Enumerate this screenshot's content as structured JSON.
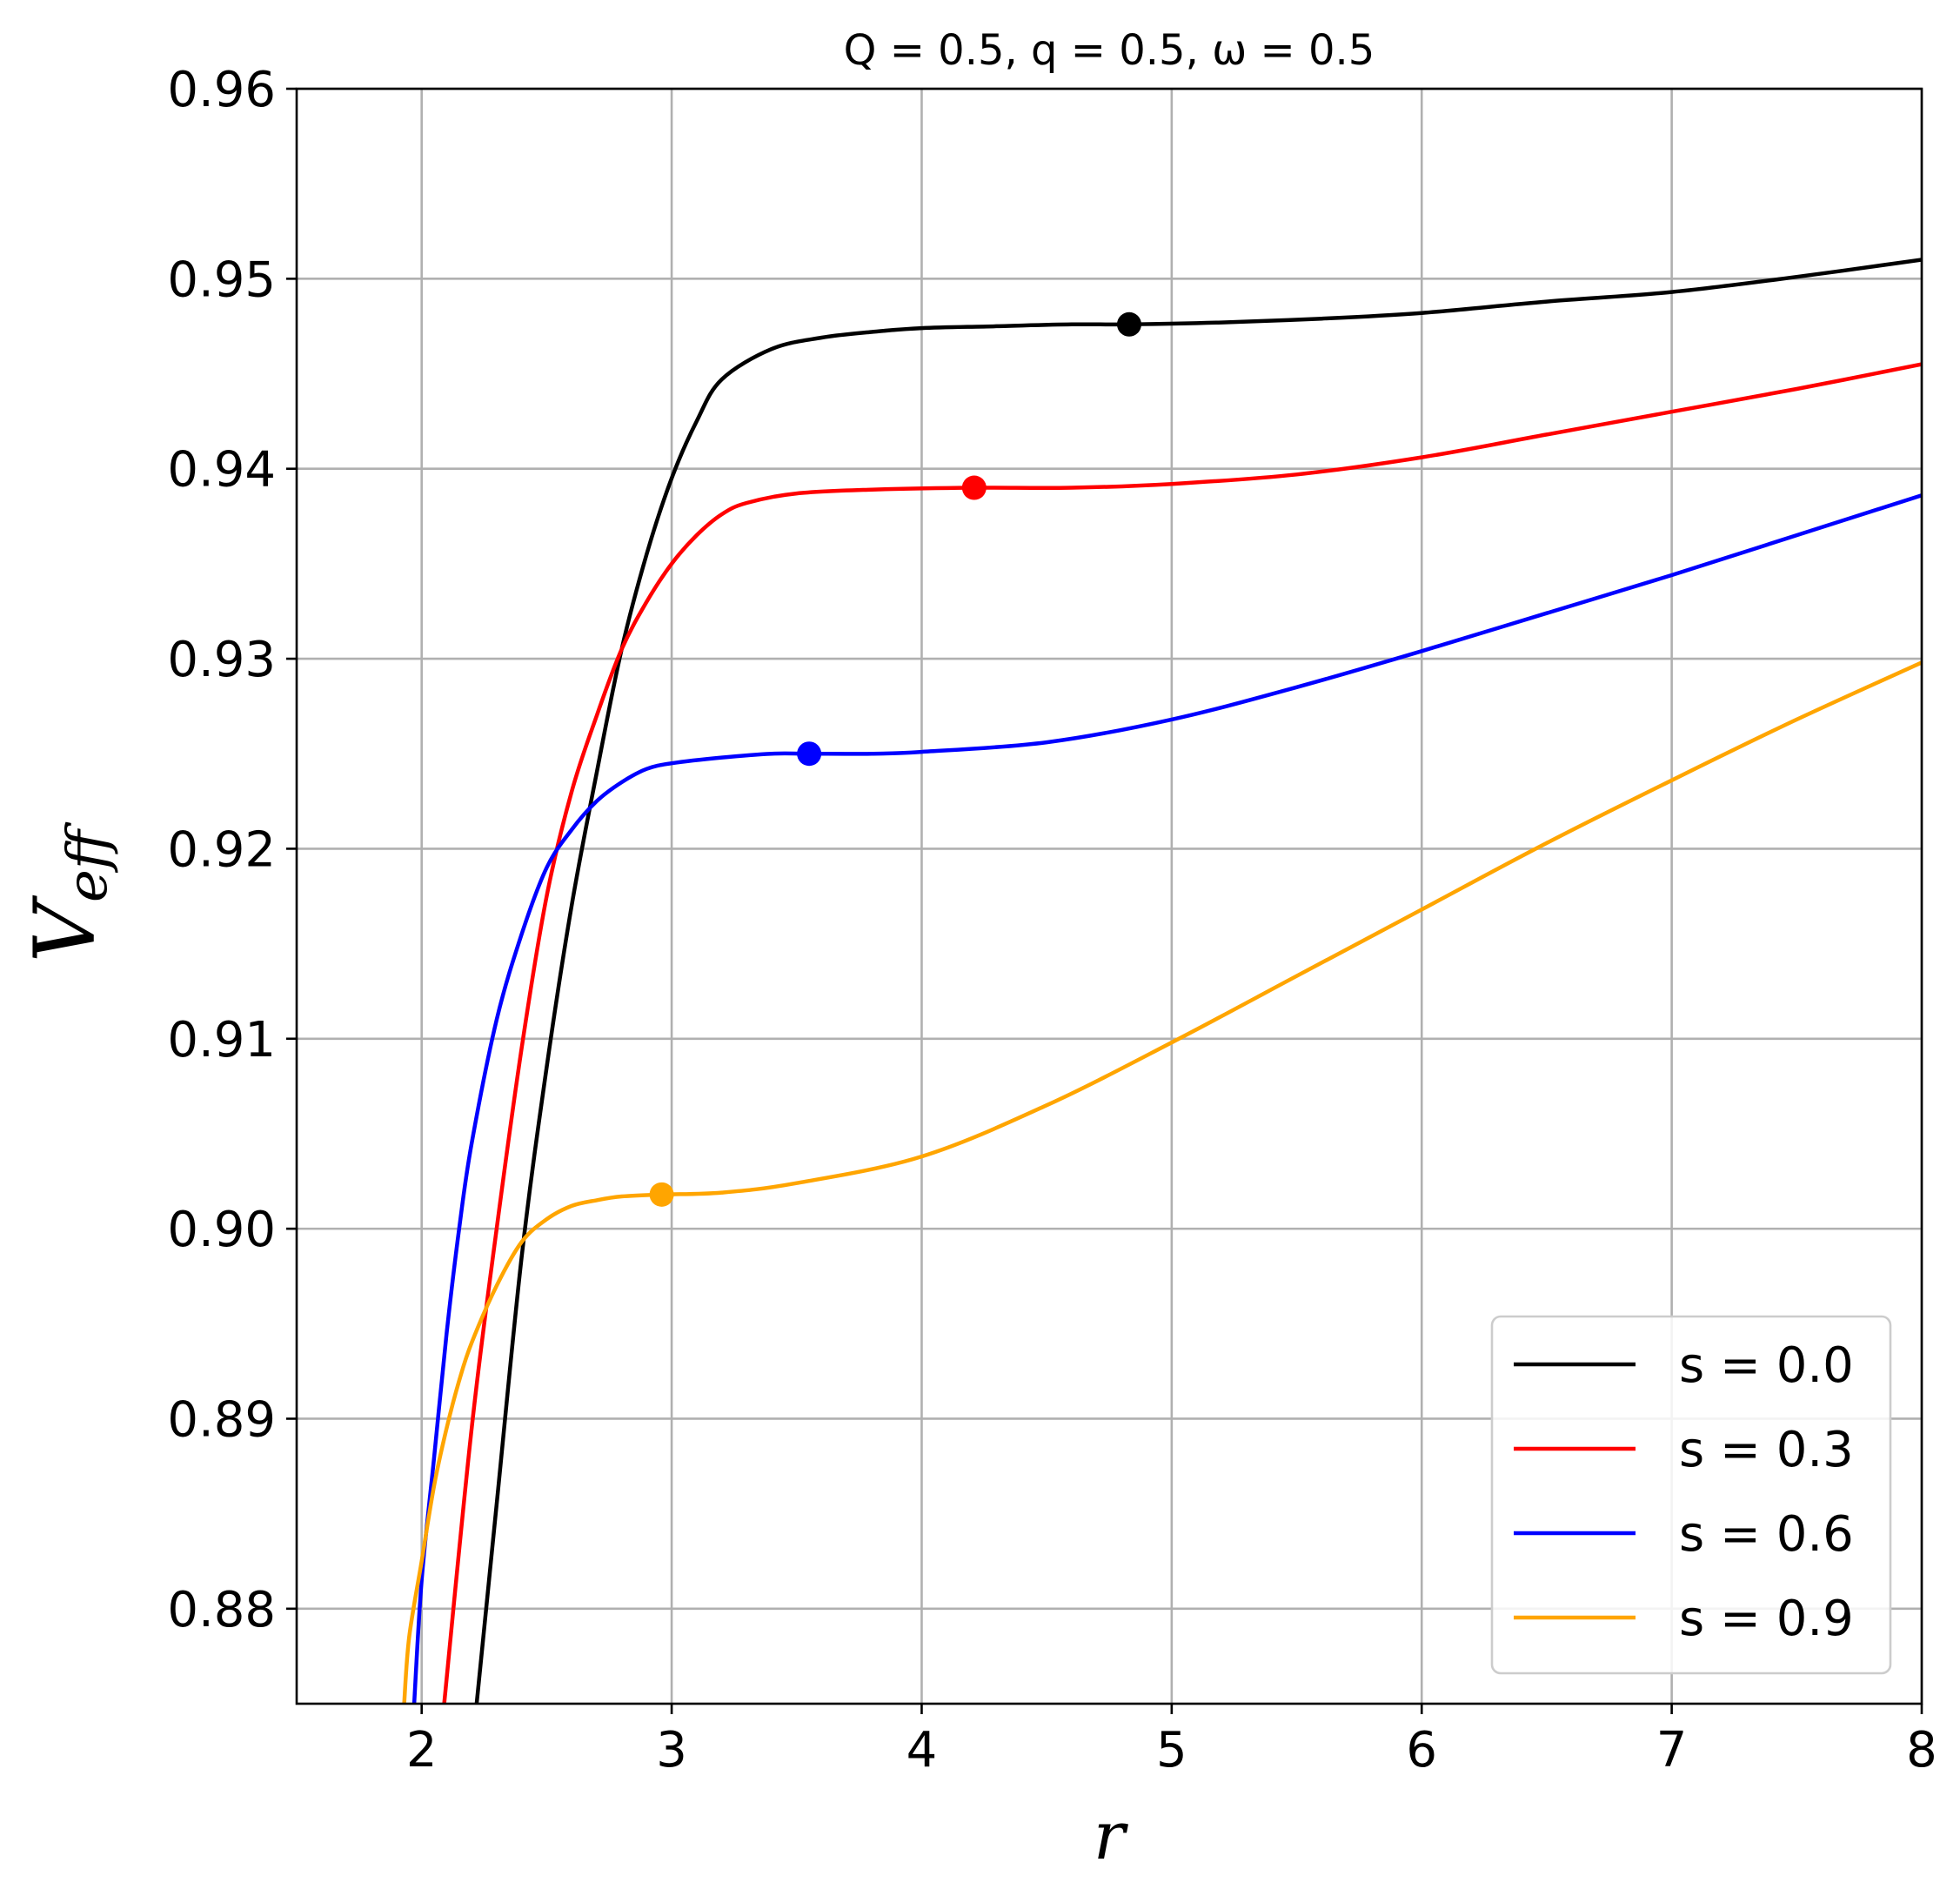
{
  "chart_data": {
    "type": "line",
    "title": "Q = 0.5, q = 0.5, ω = 0.5",
    "xlabel": "r",
    "ylabel": "V",
    "ylabel_sub": "eff",
    "xlim": [
      1.5,
      8
    ],
    "ylim": [
      0.875,
      0.96
    ],
    "x_ticks": [
      2,
      3,
      4,
      5,
      6,
      7,
      8
    ],
    "x_tick_labels": [
      "2",
      "3",
      "4",
      "5",
      "6",
      "7",
      "8"
    ],
    "y_ticks": [
      0.88,
      0.89,
      0.9,
      0.91,
      0.92,
      0.93,
      0.94,
      0.95,
      0.96
    ],
    "y_tick_labels": [
      "0.88",
      "0.89",
      "0.90",
      "0.91",
      "0.92",
      "0.93",
      "0.94",
      "0.95",
      "0.96"
    ],
    "grid": true,
    "legend_position": "bottom-right",
    "series": [
      {
        "name": "s = 0.0",
        "color": "#000000",
        "marker": {
          "x": 4.83,
          "y": 0.9476
        },
        "points": [
          [
            2.22,
            0.875
          ],
          [
            2.3,
            0.8855
          ],
          [
            2.4,
            0.8985
          ],
          [
            2.5,
            0.9085
          ],
          [
            2.6,
            0.917
          ],
          [
            2.7,
            0.924
          ],
          [
            2.8,
            0.9305
          ],
          [
            2.9,
            0.9355
          ],
          [
            3.0,
            0.9395
          ],
          [
            3.1,
            0.9425
          ],
          [
            3.2,
            0.9447
          ],
          [
            3.4,
            0.9463
          ],
          [
            3.6,
            0.9469
          ],
          [
            3.8,
            0.9472
          ],
          [
            4.0,
            0.9474
          ],
          [
            4.3,
            0.9475
          ],
          [
            4.6,
            0.9476
          ],
          [
            4.83,
            0.9476
          ],
          [
            5.2,
            0.9477
          ],
          [
            5.6,
            0.9479
          ],
          [
            6.0,
            0.9482
          ],
          [
            6.5,
            0.9488
          ],
          [
            7.0,
            0.9493
          ],
          [
            7.5,
            0.9501
          ],
          [
            8.0,
            0.951
          ]
        ]
      },
      {
        "name": "s = 0.3",
        "color": "#ff0000",
        "marker": {
          "x": 4.21,
          "y": 0.939
        },
        "points": [
          [
            2.09,
            0.875
          ],
          [
            2.2,
            0.8895
          ],
          [
            2.3,
            0.9
          ],
          [
            2.4,
            0.9095
          ],
          [
            2.5,
            0.9175
          ],
          [
            2.6,
            0.923
          ],
          [
            2.7,
            0.927
          ],
          [
            2.8,
            0.9305
          ],
          [
            2.9,
            0.933
          ],
          [
            3.0,
            0.935
          ],
          [
            3.1,
            0.9365
          ],
          [
            3.2,
            0.9376
          ],
          [
            3.3,
            0.9382
          ],
          [
            3.5,
            0.9387
          ],
          [
            3.8,
            0.9389
          ],
          [
            4.21,
            0.939
          ],
          [
            4.6,
            0.939
          ],
          [
            5.0,
            0.9392
          ],
          [
            5.5,
            0.9397
          ],
          [
            6.0,
            0.9406
          ],
          [
            6.5,
            0.9418
          ],
          [
            7.0,
            0.943
          ],
          [
            7.5,
            0.9442
          ],
          [
            8.0,
            0.9455
          ]
        ]
      },
      {
        "name": "s = 0.6",
        "color": "#0000ff",
        "marker": {
          "x": 3.55,
          "y": 0.925
        },
        "points": [
          [
            1.97,
            0.875
          ],
          [
            2.0,
            0.8815
          ],
          [
            2.05,
            0.888
          ],
          [
            2.1,
            0.8945
          ],
          [
            2.15,
            0.9
          ],
          [
            2.2,
            0.9045
          ],
          [
            2.3,
            0.911
          ],
          [
            2.4,
            0.9155
          ],
          [
            2.5,
            0.919
          ],
          [
            2.6,
            0.921
          ],
          [
            2.7,
            0.9225
          ],
          [
            2.8,
            0.9235
          ],
          [
            2.9,
            0.9242
          ],
          [
            3.0,
            0.9245
          ],
          [
            3.2,
            0.9248
          ],
          [
            3.4,
            0.925
          ],
          [
            3.55,
            0.925
          ],
          [
            3.8,
            0.925
          ],
          [
            4.0,
            0.9251
          ],
          [
            4.5,
            0.9256
          ],
          [
            5.0,
            0.9268
          ],
          [
            5.5,
            0.9285
          ],
          [
            6.0,
            0.9304
          ],
          [
            6.5,
            0.9324
          ],
          [
            7.0,
            0.9344
          ],
          [
            7.5,
            0.9365
          ],
          [
            8.0,
            0.9386
          ]
        ]
      },
      {
        "name": "s = 0.9",
        "color": "#ffa500",
        "marker": {
          "x": 2.96,
          "y": 0.9018
        },
        "points": [
          [
            1.93,
            0.875
          ],
          [
            1.95,
            0.8785
          ],
          [
            2.0,
            0.8825
          ],
          [
            2.05,
            0.8865
          ],
          [
            2.1,
            0.8895
          ],
          [
            2.15,
            0.892
          ],
          [
            2.2,
            0.894
          ],
          [
            2.3,
            0.897
          ],
          [
            2.4,
            0.8993
          ],
          [
            2.5,
            0.9005
          ],
          [
            2.6,
            0.9012
          ],
          [
            2.7,
            0.9015
          ],
          [
            2.8,
            0.9017
          ],
          [
            2.96,
            0.9018
          ],
          [
            3.2,
            0.9019
          ],
          [
            3.5,
            0.9024
          ],
          [
            4.0,
            0.9038
          ],
          [
            4.5,
            0.9065
          ],
          [
            5.0,
            0.9098
          ],
          [
            5.5,
            0.9133
          ],
          [
            6.0,
            0.9168
          ],
          [
            6.5,
            0.9203
          ],
          [
            7.0,
            0.9236
          ],
          [
            7.5,
            0.9268
          ],
          [
            8.0,
            0.9298
          ]
        ]
      }
    ]
  }
}
